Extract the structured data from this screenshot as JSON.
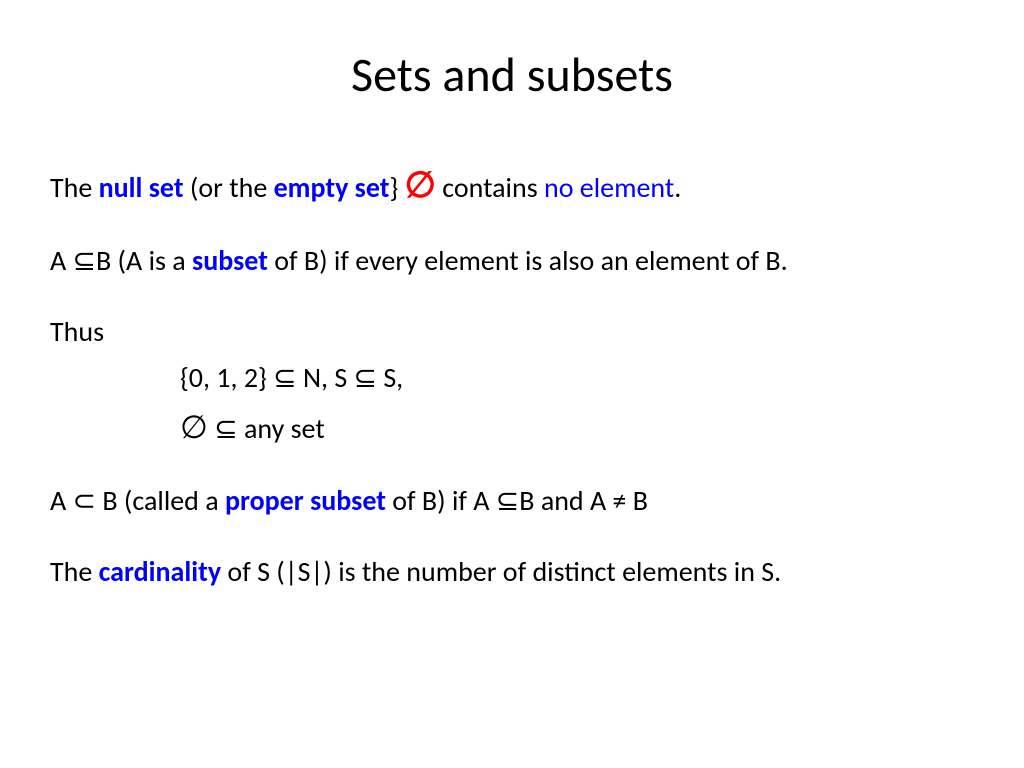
{
  "title": "Sets and subsets",
  "line1": {
    "t1": "The ",
    "null_set": "null set",
    "t2": "  (or the ",
    "empty_set": "empty set",
    "t3": "} ",
    "symbol": "∅",
    "t4": " contains ",
    "no_element": "no element",
    "t5": "."
  },
  "line2": {
    "t1": "A ⊆B  (A is a ",
    "subset": "subset",
    "t2": " of B) if every element is also an element of B."
  },
  "line3": {
    "thus": "Thus",
    "ex1": "{0, 1, 2} ⊆  N, S ⊆ S,",
    "ex2_sym": "∅",
    "ex2_txt": " ⊆ any set"
  },
  "line4": {
    "t1": "A ⊂ B (called a ",
    "proper_subset": "proper subset",
    "t2": " of B) if A ⊆B and A ≠ B"
  },
  "line5": {
    "t1": "The ",
    "cardinality": "cardinality",
    "t2": " of S (|S|) is the number of distinct elements in S."
  }
}
